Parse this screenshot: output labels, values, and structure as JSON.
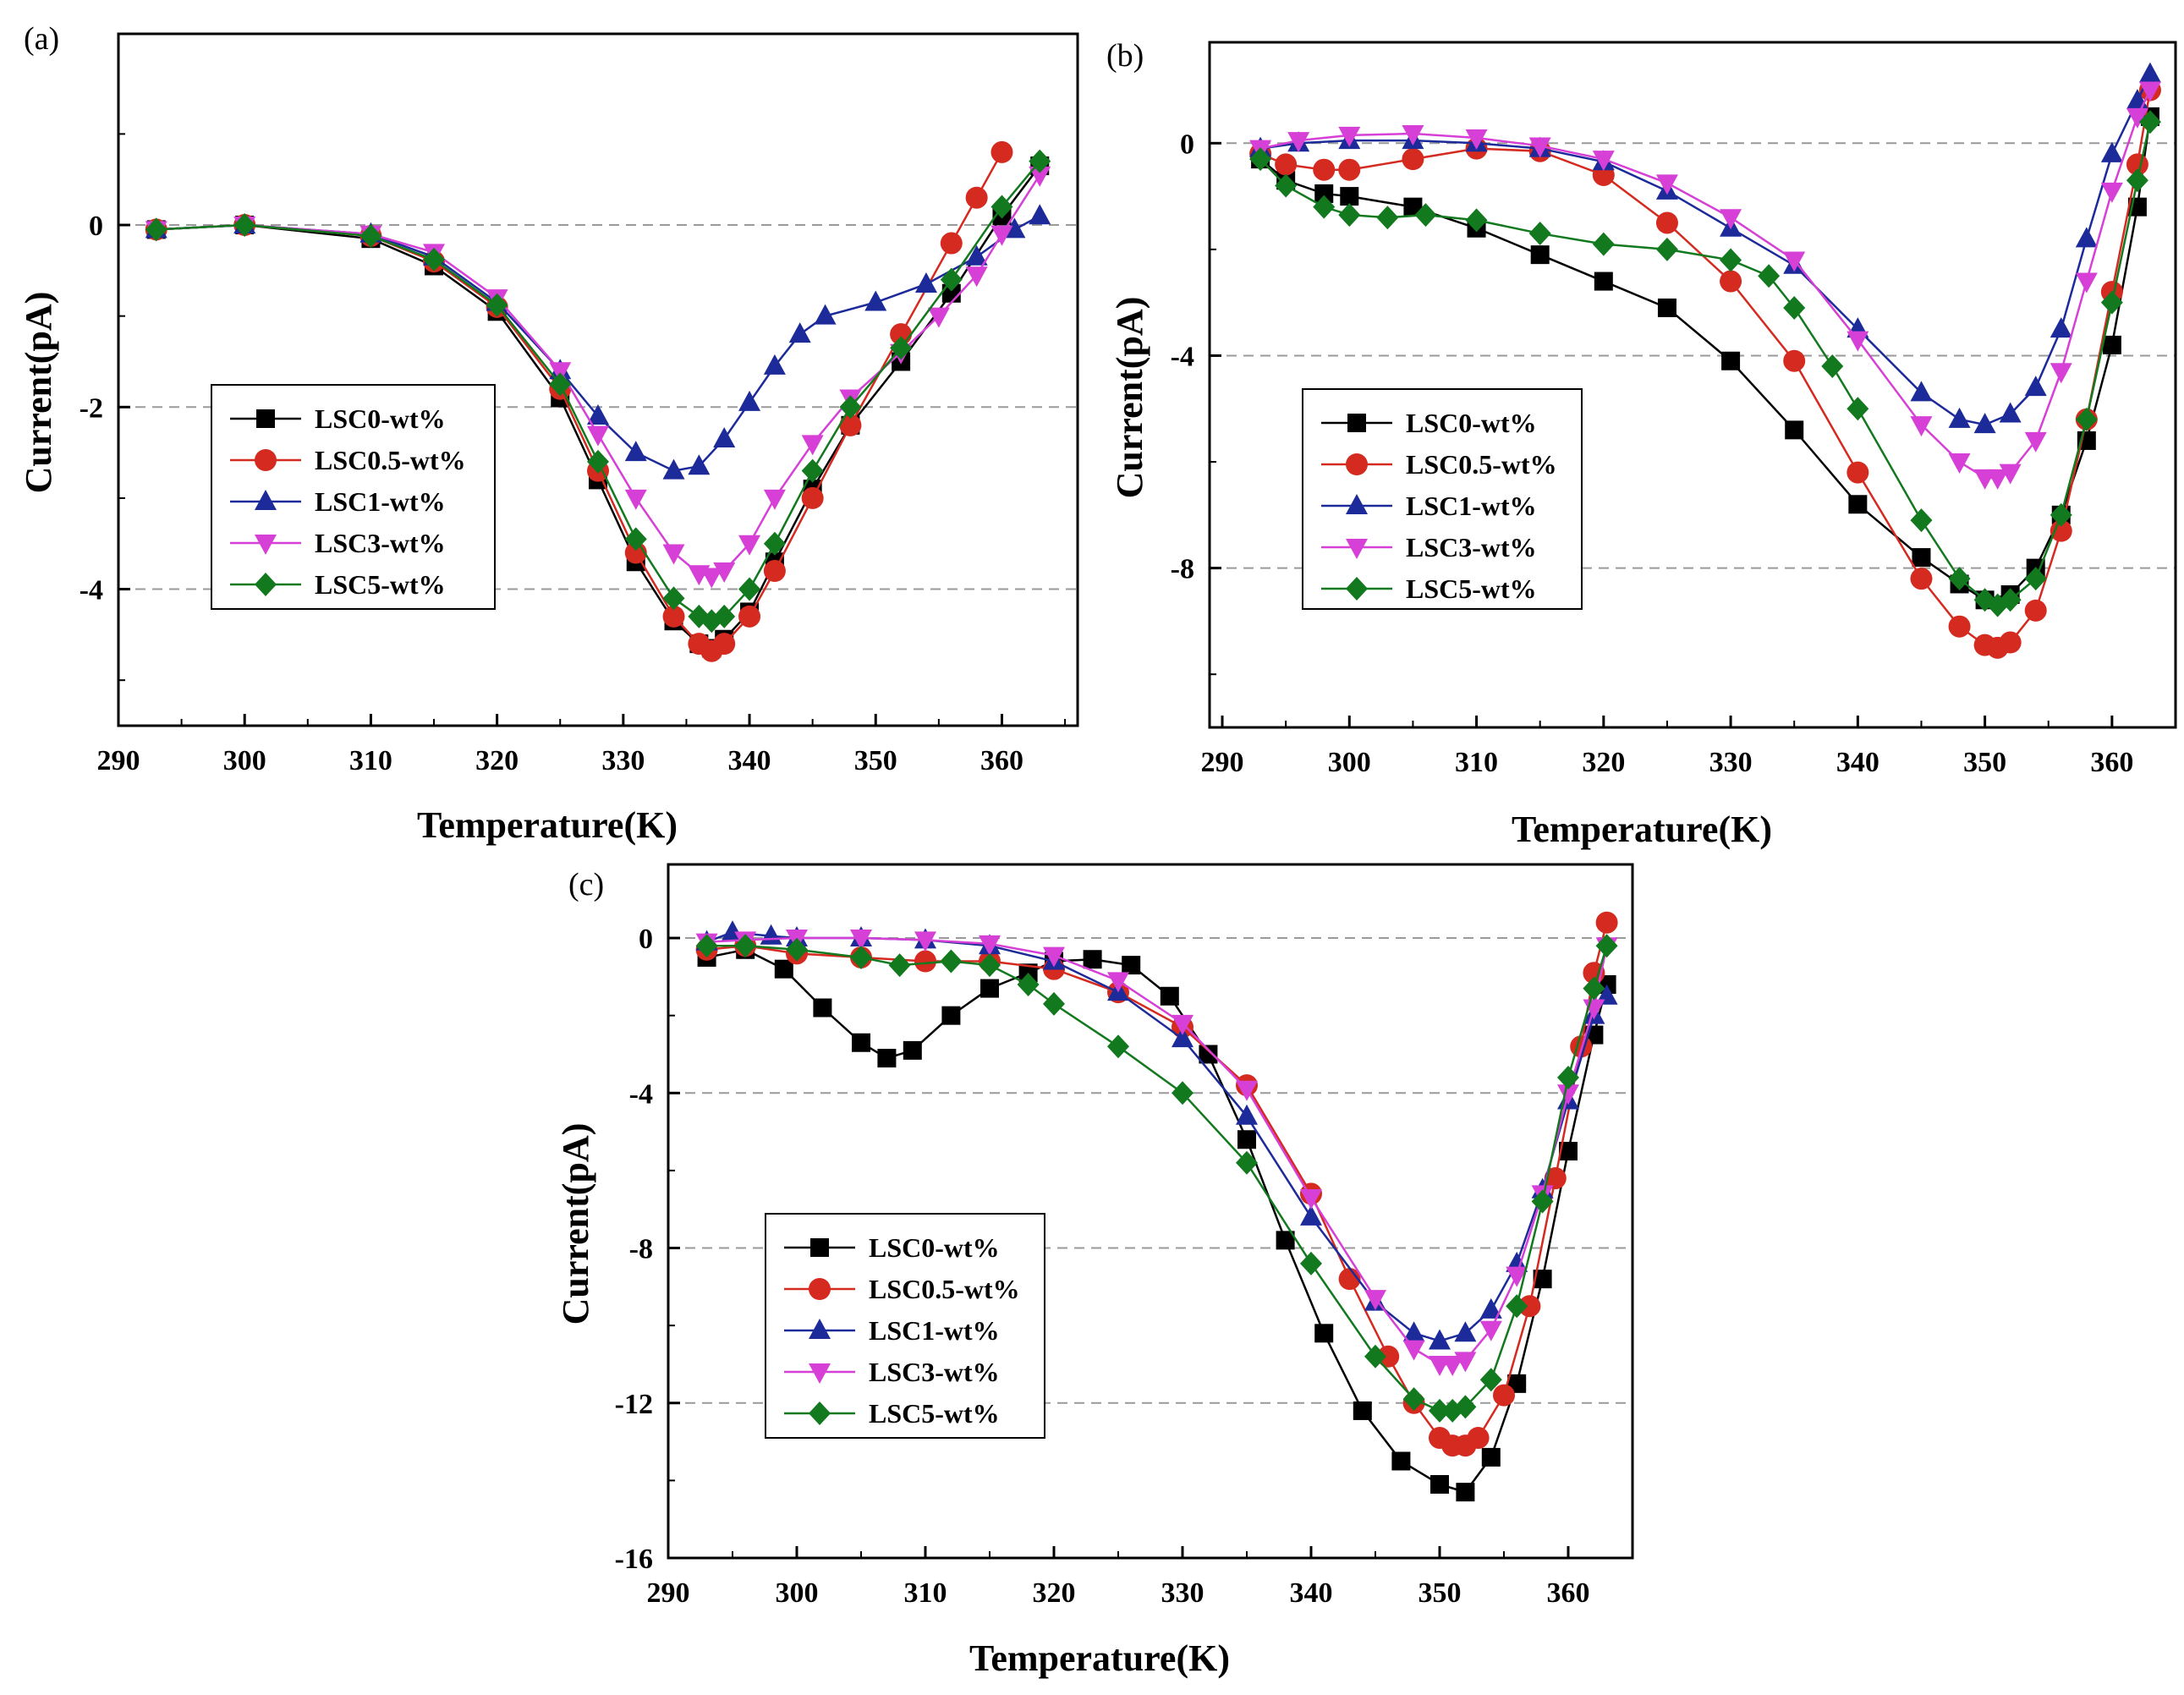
{
  "colors": {
    "LSC0-wt%": "#000000",
    "LSC0.5-wt%": "#d42a20",
    "LSC1-wt%": "#1c2a9a",
    "LSC3-wt%": "#d640d6",
    "LSC5-wt%": "#12791e"
  },
  "chart_data": [
    {
      "type": "line",
      "panel_label": "(a)",
      "xlabel": "Temperature(K)",
      "ylabel": "Current(pA)",
      "xlim": [
        290,
        366
      ],
      "ylim": [
        -5.5,
        2.1
      ],
      "xticks": [
        290,
        300,
        310,
        320,
        330,
        340,
        350,
        360
      ],
      "yticks": [
        0,
        -2,
        -4
      ],
      "grid_y": [
        0,
        -2,
        -4
      ],
      "legend": [
        "LSC0-wt%",
        "LSC0.5-wt%",
        "LSC1-wt%",
        "LSC3-wt%",
        "LSC5-wt%"
      ],
      "legend_position": "center-left",
      "series": [
        {
          "name": "LSC0-wt%",
          "marker": "square",
          "x": [
            293,
            300,
            310,
            315,
            320,
            325,
            328,
            331,
            334,
            336,
            337,
            338,
            340,
            342,
            345,
            348,
            352,
            356,
            360,
            363
          ],
          "y": [
            -0.05,
            0,
            -0.15,
            -0.45,
            -0.95,
            -1.9,
            -2.8,
            -3.7,
            -4.35,
            -4.6,
            -4.65,
            -4.55,
            -4.25,
            -3.7,
            -2.9,
            -2.2,
            -1.5,
            -0.75,
            0.1,
            0.65
          ]
        },
        {
          "name": "LSC0.5-wt%",
          "marker": "circle",
          "x": [
            293,
            300,
            310,
            315,
            320,
            325,
            328,
            331,
            334,
            336,
            337,
            338,
            340,
            342,
            345,
            348,
            352,
            356,
            358,
            360
          ],
          "y": [
            -0.05,
            0,
            -0.12,
            -0.4,
            -0.9,
            -1.8,
            -2.7,
            -3.6,
            -4.3,
            -4.6,
            -4.68,
            -4.6,
            -4.3,
            -3.8,
            -3.0,
            -2.2,
            -1.2,
            -0.2,
            0.3,
            0.8
          ]
        },
        {
          "name": "LSC1-wt%",
          "marker": "triangle-up",
          "x": [
            293,
            300,
            310,
            315,
            320,
            325,
            328,
            331,
            334,
            336,
            338,
            340,
            342,
            344,
            346,
            350,
            354,
            358,
            361,
            363
          ],
          "y": [
            -0.05,
            0,
            -0.1,
            -0.35,
            -0.85,
            -1.6,
            -2.1,
            -2.5,
            -2.7,
            -2.65,
            -2.35,
            -1.95,
            -1.55,
            -1.2,
            -1.0,
            -0.85,
            -0.65,
            -0.35,
            -0.05,
            0.1
          ]
        },
        {
          "name": "LSC3-wt%",
          "marker": "triangle-down",
          "x": [
            293,
            300,
            310,
            315,
            320,
            325,
            328,
            331,
            334,
            336,
            337,
            338,
            340,
            342,
            345,
            348,
            352,
            355,
            358,
            360,
            363
          ],
          "y": [
            -0.05,
            0,
            -0.1,
            -0.3,
            -0.8,
            -1.6,
            -2.3,
            -3.0,
            -3.6,
            -3.83,
            -3.86,
            -3.8,
            -3.5,
            -3.0,
            -2.4,
            -1.9,
            -1.4,
            -1.0,
            -0.55,
            -0.1,
            0.55
          ]
        },
        {
          "name": "LSC5-wt%",
          "marker": "diamond",
          "x": [
            293,
            300,
            310,
            315,
            320,
            325,
            328,
            331,
            334,
            336,
            337,
            338,
            340,
            342,
            345,
            348,
            352,
            356,
            360,
            363
          ],
          "y": [
            -0.05,
            0,
            -0.12,
            -0.38,
            -0.88,
            -1.75,
            -2.6,
            -3.45,
            -4.1,
            -4.3,
            -4.35,
            -4.3,
            -4.0,
            -3.5,
            -2.7,
            -2.0,
            -1.35,
            -0.6,
            0.2,
            0.7
          ]
        }
      ]
    },
    {
      "type": "line",
      "panel_label": "(b)",
      "xlabel": "Temperature(K)",
      "ylabel": "Current(pA)",
      "xlim": [
        289,
        365
      ],
      "ylim": [
        -11,
        1.9
      ],
      "xticks": [
        290,
        300,
        310,
        320,
        330,
        340,
        350,
        360
      ],
      "yticks": [
        0,
        -4,
        -8
      ],
      "grid_y": [
        0,
        -4,
        -8
      ],
      "legend": [
        "LSC0-wt%",
        "LSC0.5-wt%",
        "LSC1-wt%",
        "LSC3-wt%",
        "LSC5-wt%"
      ],
      "legend_position": "lower-left",
      "series": [
        {
          "name": "LSC0-wt%",
          "marker": "square",
          "x": [
            293,
            295,
            298,
            300,
            305,
            310,
            315,
            320,
            325,
            330,
            335,
            340,
            345,
            348,
            350,
            352,
            354,
            356,
            358,
            360,
            362,
            363
          ],
          "y": [
            -0.3,
            -0.7,
            -0.95,
            -1.0,
            -1.2,
            -1.6,
            -2.1,
            -2.6,
            -3.1,
            -4.1,
            -5.4,
            -6.8,
            -7.8,
            -8.3,
            -8.6,
            -8.5,
            -8.0,
            -7.0,
            -5.6,
            -3.8,
            -1.2,
            0.5
          ]
        },
        {
          "name": "LSC0.5-wt%",
          "marker": "circle",
          "x": [
            293,
            295,
            298,
            300,
            305,
            310,
            315,
            320,
            325,
            330,
            335,
            340,
            345,
            348,
            350,
            351,
            352,
            354,
            356,
            358,
            360,
            362,
            363
          ],
          "y": [
            -0.2,
            -0.4,
            -0.5,
            -0.5,
            -0.3,
            -0.1,
            -0.15,
            -0.6,
            -1.5,
            -2.6,
            -4.1,
            -6.2,
            -8.2,
            -9.1,
            -9.45,
            -9.5,
            -9.4,
            -8.8,
            -7.3,
            -5.2,
            -2.8,
            -0.4,
            1.0
          ]
        },
        {
          "name": "LSC1-wt%",
          "marker": "triangle-up",
          "x": [
            293,
            296,
            300,
            305,
            310,
            315,
            320,
            325,
            330,
            335,
            340,
            345,
            348,
            350,
            352,
            354,
            356,
            358,
            360,
            362,
            363
          ],
          "y": [
            -0.1,
            0,
            0.05,
            0.05,
            0.0,
            -0.1,
            -0.35,
            -0.9,
            -1.6,
            -2.3,
            -3.5,
            -4.7,
            -5.2,
            -5.3,
            -5.1,
            -4.6,
            -3.5,
            -1.8,
            -0.2,
            0.8,
            1.3
          ]
        },
        {
          "name": "LSC3-wt%",
          "marker": "triangle-down",
          "x": [
            293,
            296,
            300,
            305,
            310,
            315,
            320,
            325,
            330,
            335,
            340,
            345,
            348,
            350,
            351,
            352,
            354,
            356,
            358,
            360,
            362,
            363
          ],
          "y": [
            -0.1,
            0.05,
            0.15,
            0.18,
            0.1,
            -0.05,
            -0.3,
            -0.75,
            -1.4,
            -2.2,
            -3.7,
            -5.3,
            -6.0,
            -6.3,
            -6.3,
            -6.2,
            -5.6,
            -4.3,
            -2.6,
            -0.9,
            0.5,
            1.0
          ]
        },
        {
          "name": "LSC5-wt%",
          "marker": "diamond",
          "x": [
            293,
            295,
            298,
            300,
            303,
            306,
            310,
            315,
            320,
            325,
            330,
            333,
            335,
            338,
            340,
            345,
            348,
            350,
            351,
            352,
            354,
            356,
            358,
            360,
            362,
            363
          ],
          "y": [
            -0.3,
            -0.8,
            -1.2,
            -1.35,
            -1.4,
            -1.35,
            -1.45,
            -1.7,
            -1.9,
            -2.0,
            -2.2,
            -2.5,
            -3.1,
            -4.2,
            -5.0,
            -7.1,
            -8.2,
            -8.6,
            -8.7,
            -8.6,
            -8.2,
            -7.0,
            -5.2,
            -3.0,
            -0.7,
            0.4
          ]
        }
      ]
    },
    {
      "type": "line",
      "panel_label": "(c)",
      "xlabel": "Temperature(K)",
      "ylabel": "Current(pA)",
      "xlim": [
        290,
        365
      ],
      "ylim": [
        -16,
        1.9
      ],
      "xticks": [
        290,
        300,
        310,
        320,
        330,
        340,
        350,
        360
      ],
      "yticks": [
        0,
        -4,
        -8,
        -12,
        -16
      ],
      "grid_y": [
        0,
        -4,
        -8,
        -12
      ],
      "legend": [
        "LSC0-wt%",
        "LSC0.5-wt%",
        "LSC1-wt%",
        "LSC3-wt%",
        "LSC5-wt%"
      ],
      "legend_position": "lower-left",
      "series": [
        {
          "name": "LSC0-wt%",
          "marker": "square",
          "x": [
            293,
            296,
            299,
            302,
            305,
            307,
            309,
            312,
            315,
            318,
            320,
            323,
            326,
            329,
            332,
            335,
            338,
            341,
            344,
            347,
            350,
            352,
            354,
            356,
            358,
            360,
            362,
            363
          ],
          "y": [
            -0.5,
            -0.3,
            -0.8,
            -1.8,
            -2.7,
            -3.1,
            -2.9,
            -2.0,
            -1.3,
            -0.9,
            -0.6,
            -0.55,
            -0.7,
            -1.5,
            -3.0,
            -5.2,
            -7.8,
            -10.2,
            -12.2,
            -13.5,
            -14.1,
            -14.3,
            -13.4,
            -11.5,
            -8.8,
            -5.5,
            -2.5,
            -1.2
          ]
        },
        {
          "name": "LSC0.5-wt%",
          "marker": "circle",
          "x": [
            293,
            296,
            300,
            305,
            310,
            315,
            320,
            325,
            330,
            335,
            340,
            343,
            346,
            348,
            350,
            351,
            352,
            353,
            355,
            357,
            359,
            361,
            362,
            363
          ],
          "y": [
            -0.3,
            -0.2,
            -0.4,
            -0.5,
            -0.6,
            -0.6,
            -0.8,
            -1.4,
            -2.3,
            -3.8,
            -6.6,
            -8.8,
            -10.8,
            -12.0,
            -12.9,
            -13.1,
            -13.1,
            -12.9,
            -11.8,
            -9.5,
            -6.2,
            -2.8,
            -0.9,
            0.4
          ]
        },
        {
          "name": "LSC1-wt%",
          "marker": "triangle-up",
          "x": [
            293,
            295,
            298,
            300,
            305,
            310,
            315,
            320,
            325,
            330,
            335,
            340,
            345,
            348,
            350,
            352,
            354,
            356,
            358,
            360,
            362,
            363
          ],
          "y": [
            -0.1,
            0.15,
            0.05,
            0.0,
            0.0,
            -0.05,
            -0.2,
            -0.6,
            -1.4,
            -2.6,
            -4.6,
            -7.2,
            -9.4,
            -10.2,
            -10.4,
            -10.2,
            -9.6,
            -8.4,
            -6.5,
            -4.2,
            -2.0,
            -1.5
          ]
        },
        {
          "name": "LSC3-wt%",
          "marker": "triangle-down",
          "x": [
            293,
            296,
            300,
            305,
            310,
            315,
            320,
            325,
            330,
            335,
            340,
            345,
            348,
            350,
            351,
            352,
            354,
            356,
            358,
            360,
            362,
            363
          ],
          "y": [
            -0.1,
            -0.05,
            0.0,
            0.0,
            -0.05,
            -0.15,
            -0.45,
            -1.1,
            -2.2,
            -3.9,
            -6.7,
            -9.3,
            -10.6,
            -11.0,
            -11.0,
            -10.9,
            -10.1,
            -8.7,
            -6.6,
            -4.0,
            -1.8,
            -0.2
          ]
        },
        {
          "name": "LSC5-wt%",
          "marker": "diamond",
          "x": [
            293,
            296,
            300,
            305,
            308,
            312,
            315,
            318,
            320,
            325,
            330,
            335,
            340,
            345,
            348,
            350,
            351,
            352,
            354,
            356,
            358,
            360,
            362,
            363
          ],
          "y": [
            -0.2,
            -0.2,
            -0.3,
            -0.5,
            -0.7,
            -0.6,
            -0.7,
            -1.2,
            -1.7,
            -2.8,
            -4.0,
            -5.8,
            -8.4,
            -10.8,
            -11.9,
            -12.2,
            -12.2,
            -12.1,
            -11.4,
            -9.5,
            -6.8,
            -3.6,
            -1.3,
            -0.2
          ]
        }
      ]
    }
  ]
}
